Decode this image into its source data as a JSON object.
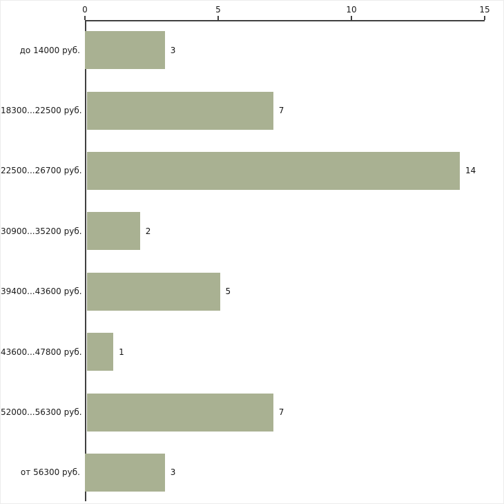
{
  "chart_data": {
    "type": "bar",
    "orientation": "horizontal",
    "title": "",
    "xlabel": "",
    "ylabel": "",
    "categories": [
      "до 14000 руб.",
      "18300...22500 руб.",
      "22500...26700 руб.",
      "30900...35200 руб.",
      "39400...43600 руб.",
      "43600...47800 руб.",
      "52000...56300 руб.",
      "от 56300 руб."
    ],
    "values": [
      3,
      7,
      14,
      2,
      5,
      1,
      7,
      3
    ],
    "xlim": [
      0,
      15
    ],
    "x_ticks": [
      0,
      5,
      10,
      15
    ],
    "grid": false,
    "legend": "none",
    "value_labels": true,
    "bar_color": "#a9b192",
    "axis_color": "#3f3f3f",
    "text_color": "#1a1a1a",
    "background_color": "#ffffff"
  }
}
